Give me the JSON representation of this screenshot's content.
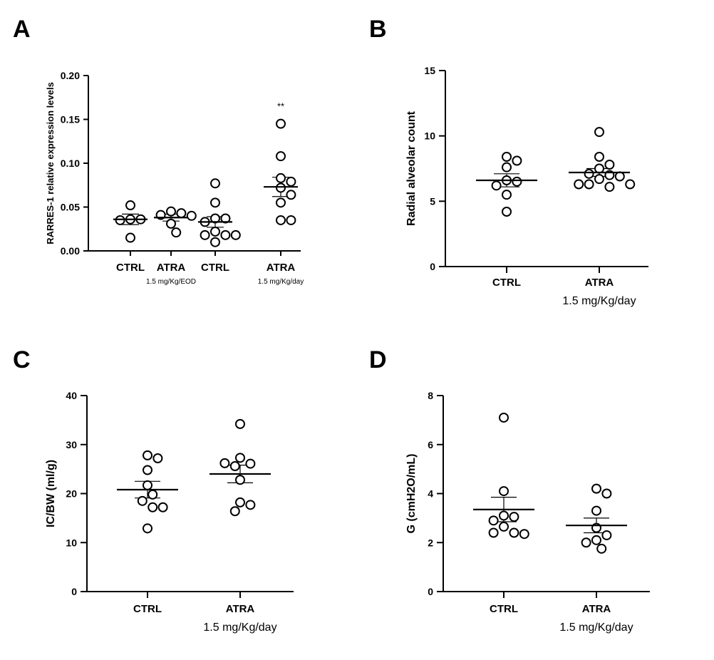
{
  "figure": {
    "panels": [
      "A",
      "B",
      "C",
      "D"
    ]
  },
  "chart_data": [
    {
      "panel": "A",
      "type": "scatter",
      "title": "",
      "ylabel": "RARRES-1 relative expression levels",
      "ylim": [
        0,
        0.2
      ],
      "yticks": [
        0.0,
        0.05,
        0.1,
        0.15,
        0.2
      ],
      "ytick_labels": [
        "0.00",
        "0.05",
        "0.10",
        "0.15",
        "0.20"
      ],
      "grid": false,
      "groups": [
        {
          "label": "CTRL",
          "sublabel": "",
          "mean": 0.036,
          "sem": 0.006,
          "points": [
            0.052,
            0.036,
            0.036,
            0.035,
            0.015
          ],
          "annotation": ""
        },
        {
          "label": "ATRA",
          "sublabel": "1.5 mg/Kg/EOD",
          "mean": 0.038,
          "sem": 0.004,
          "points": [
            0.045,
            0.043,
            0.041,
            0.04,
            0.031,
            0.021
          ],
          "annotation": ""
        },
        {
          "label": "CTRL",
          "sublabel": "",
          "mean": 0.033,
          "sem": 0.006,
          "points": [
            0.077,
            0.055,
            0.037,
            0.037,
            0.033,
            0.022,
            0.018,
            0.018,
            0.018,
            0.01
          ],
          "annotation": ""
        },
        {
          "label": "ATRA",
          "sublabel": "1.5 mg/Kg/day",
          "mean": 0.073,
          "sem": 0.011,
          "points": [
            0.145,
            0.108,
            0.083,
            0.079,
            0.072,
            0.064,
            0.055,
            0.035,
            0.035
          ],
          "annotation": "**"
        }
      ]
    },
    {
      "panel": "B",
      "type": "scatter",
      "title": "",
      "ylabel": "Radial alveolar count",
      "ylim": [
        0,
        15
      ],
      "yticks": [
        0,
        5,
        10,
        15
      ],
      "ytick_labels": [
        "0",
        "5",
        "10",
        "15"
      ],
      "grid": false,
      "groups": [
        {
          "label": "CTRL",
          "sublabel": "",
          "mean": 6.6,
          "sem": 0.5,
          "points": [
            8.4,
            8.1,
            7.6,
            6.6,
            6.5,
            6.2,
            5.5,
            4.2
          ]
        },
        {
          "label": "ATRA",
          "sublabel": "1.5 mg/Kg/day",
          "mean": 7.2,
          "sem": 0.3,
          "points": [
            10.3,
            8.4,
            7.8,
            7.5,
            7.1,
            7.0,
            6.9,
            6.7,
            6.3,
            6.3,
            6.3,
            6.1
          ]
        }
      ]
    },
    {
      "panel": "C",
      "type": "scatter",
      "title": "",
      "ylabel": "IC/BW (ml/g)",
      "ylim": [
        0,
        40
      ],
      "yticks": [
        0,
        10,
        20,
        30,
        40
      ],
      "ytick_labels": [
        "0",
        "10",
        "20",
        "30",
        "40"
      ],
      "grid": false,
      "groups": [
        {
          "label": "CTRL",
          "sublabel": "",
          "mean": 20.8,
          "sem": 1.7,
          "points": [
            27.8,
            27.2,
            24.8,
            21.7,
            19.8,
            18.5,
            17.2,
            17.2,
            12.9
          ]
        },
        {
          "label": "ATRA",
          "sublabel": "1.5 mg/Kg/day",
          "mean": 24.0,
          "sem": 1.8,
          "points": [
            34.2,
            27.3,
            26.1,
            25.6,
            26.2,
            22.8,
            18.2,
            17.7,
            16.4
          ]
        }
      ]
    },
    {
      "panel": "D",
      "type": "scatter",
      "title": "",
      "ylabel": "G (cmH2O/mL)",
      "ylim": [
        0,
        8
      ],
      "yticks": [
        0,
        2,
        4,
        6,
        8
      ],
      "ytick_labels": [
        "0",
        "2",
        "4",
        "6",
        "8"
      ],
      "grid": false,
      "groups": [
        {
          "label": "CTRL",
          "sublabel": "",
          "mean": 3.35,
          "sem": 0.5,
          "points": [
            7.1,
            4.1,
            3.1,
            3.05,
            2.9,
            2.65,
            2.4,
            2.4,
            2.35
          ]
        },
        {
          "label": "ATRA",
          "sublabel": "1.5 mg/Kg/day",
          "mean": 2.7,
          "sem": 0.3,
          "points": [
            4.2,
            4.0,
            3.3,
            2.6,
            2.3,
            2.1,
            2.0,
            1.75
          ]
        }
      ]
    }
  ]
}
